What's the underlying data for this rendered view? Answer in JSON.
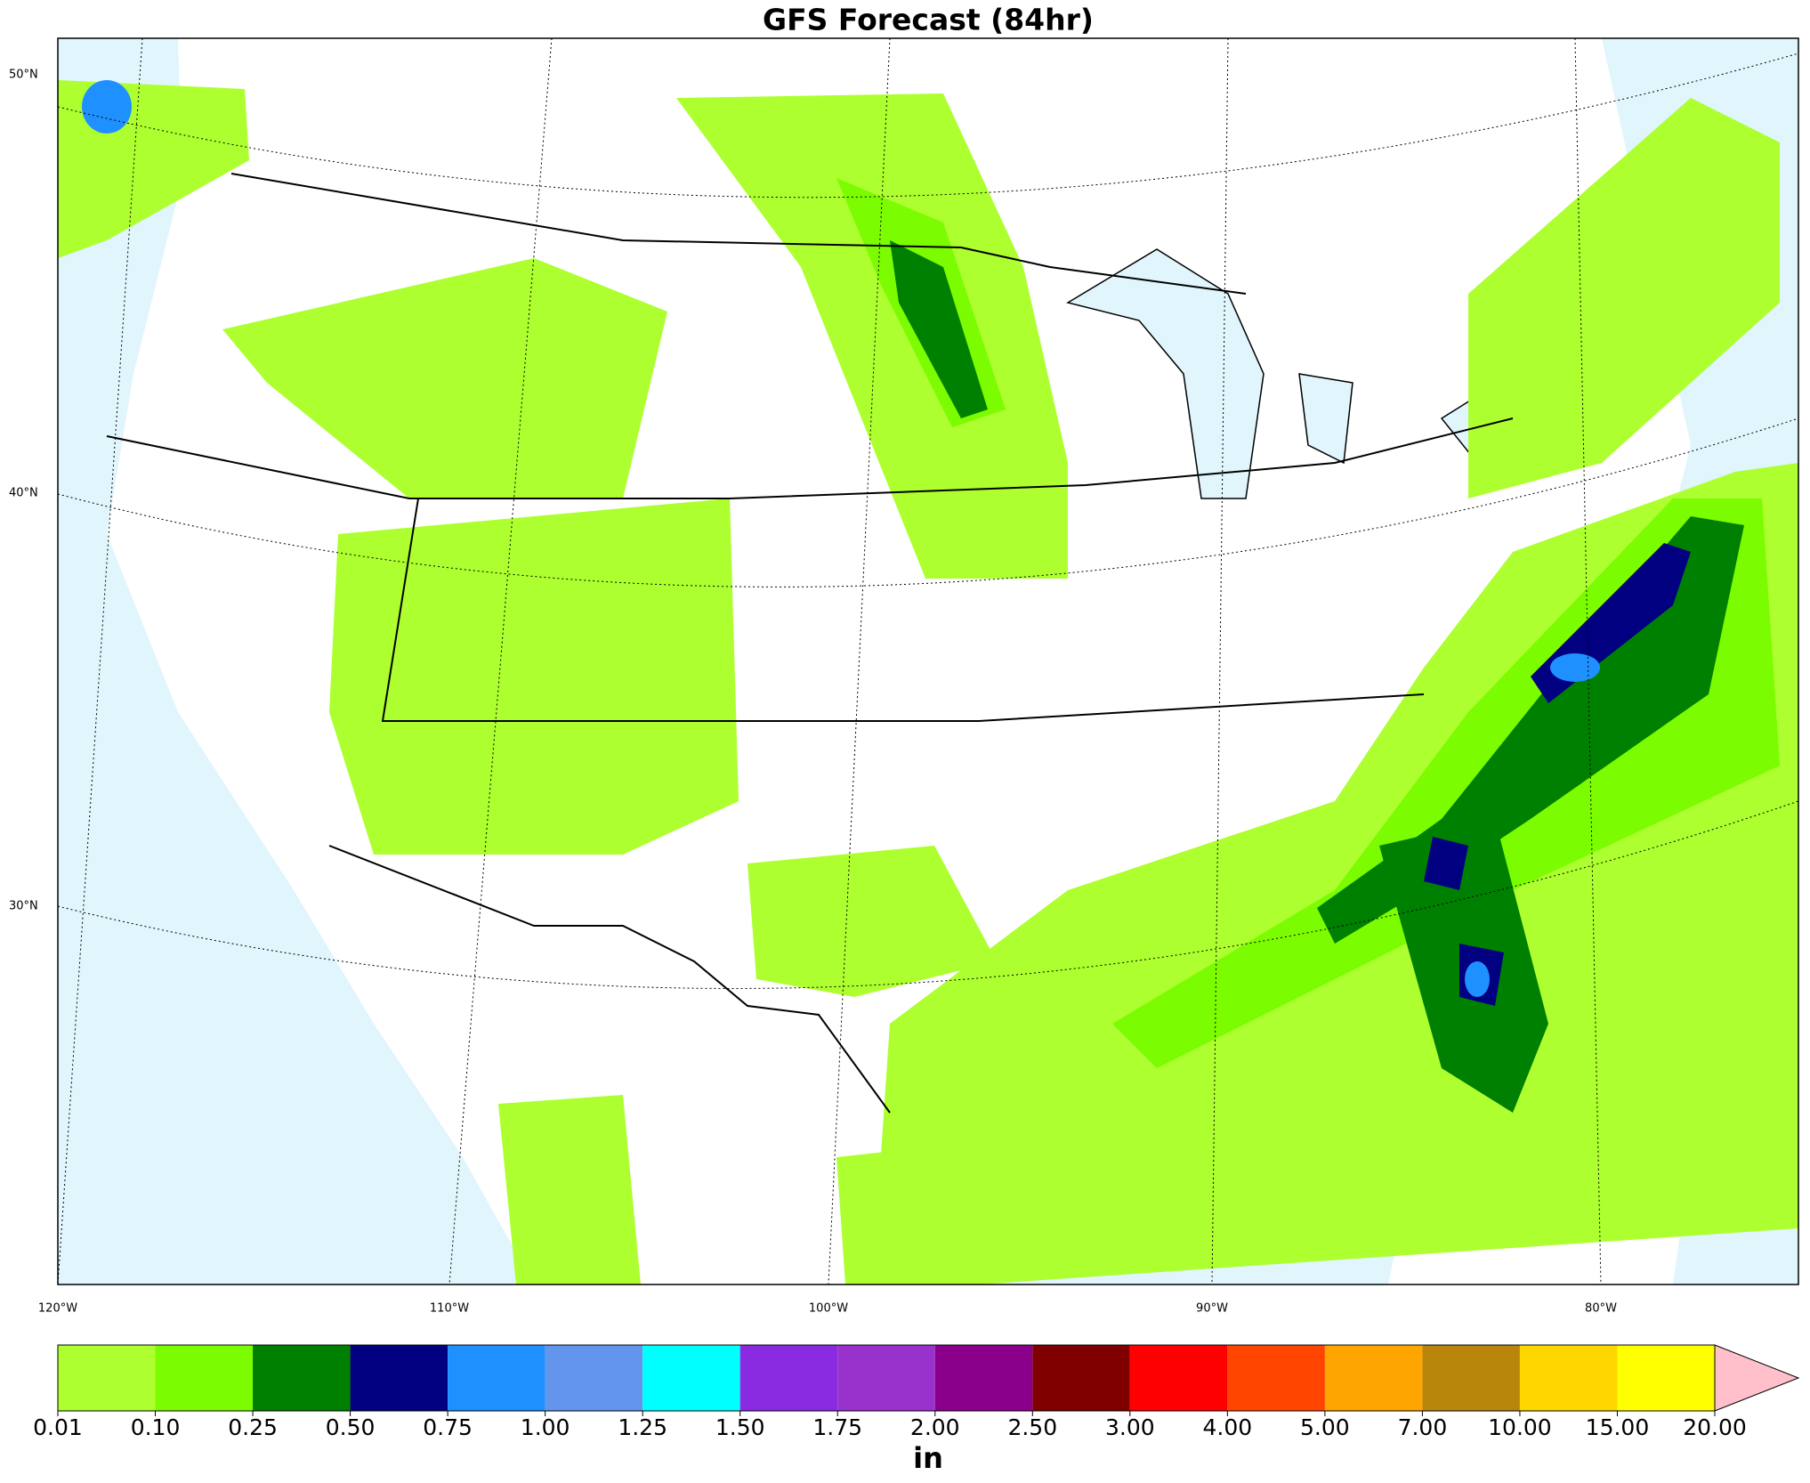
{
  "title": "GFS Forecast (84hr)",
  "map": {
    "lon_labels": [
      "120°W",
      "110°W",
      "100°W",
      "90°W",
      "80°W"
    ],
    "lat_labels": [
      "50°N",
      "40°N",
      "30°N"
    ]
  },
  "colorbar": {
    "unit": "in",
    "ticks": [
      0.01,
      {
        "value": 0.1,
        "label": "0.10"
      },
      0.25,
      {
        "value": 0.5,
        "label": "0.50"
      },
      0.75,
      {
        "value": 1,
        "label": "1.00"
      },
      1.25,
      {
        "value": 1.5,
        "label": "1.50"
      },
      1.75,
      {
        "value": 2,
        "label": "2.00"
      },
      {
        "value": 2.5,
        "label": "2.50"
      },
      {
        "value": 3,
        "label": "3.00"
      },
      {
        "value": 4,
        "label": "4.00"
      },
      {
        "value": 5,
        "label": "5.00"
      },
      {
        "value": 7,
        "label": "7.00"
      },
      {
        "value": 10,
        "label": "10.00"
      },
      {
        "value": 15,
        "label": "15.00"
      },
      {
        "value": 20,
        "label": "20.00"
      }
    ],
    "colors": [
      "#adff2f",
      "#7cfc00",
      "#008000",
      "#000080",
      "#1e90ff",
      "#6495ed",
      "#00ffff",
      "#8a2be2",
      "#9932cc",
      "#8b008b",
      "#800000",
      "#ff0000",
      "#ff4500",
      "#ffa500",
      "#b8860b",
      "#ffd700",
      "#ffff00"
    ],
    "extend_color": "#ffc0cb"
  }
}
